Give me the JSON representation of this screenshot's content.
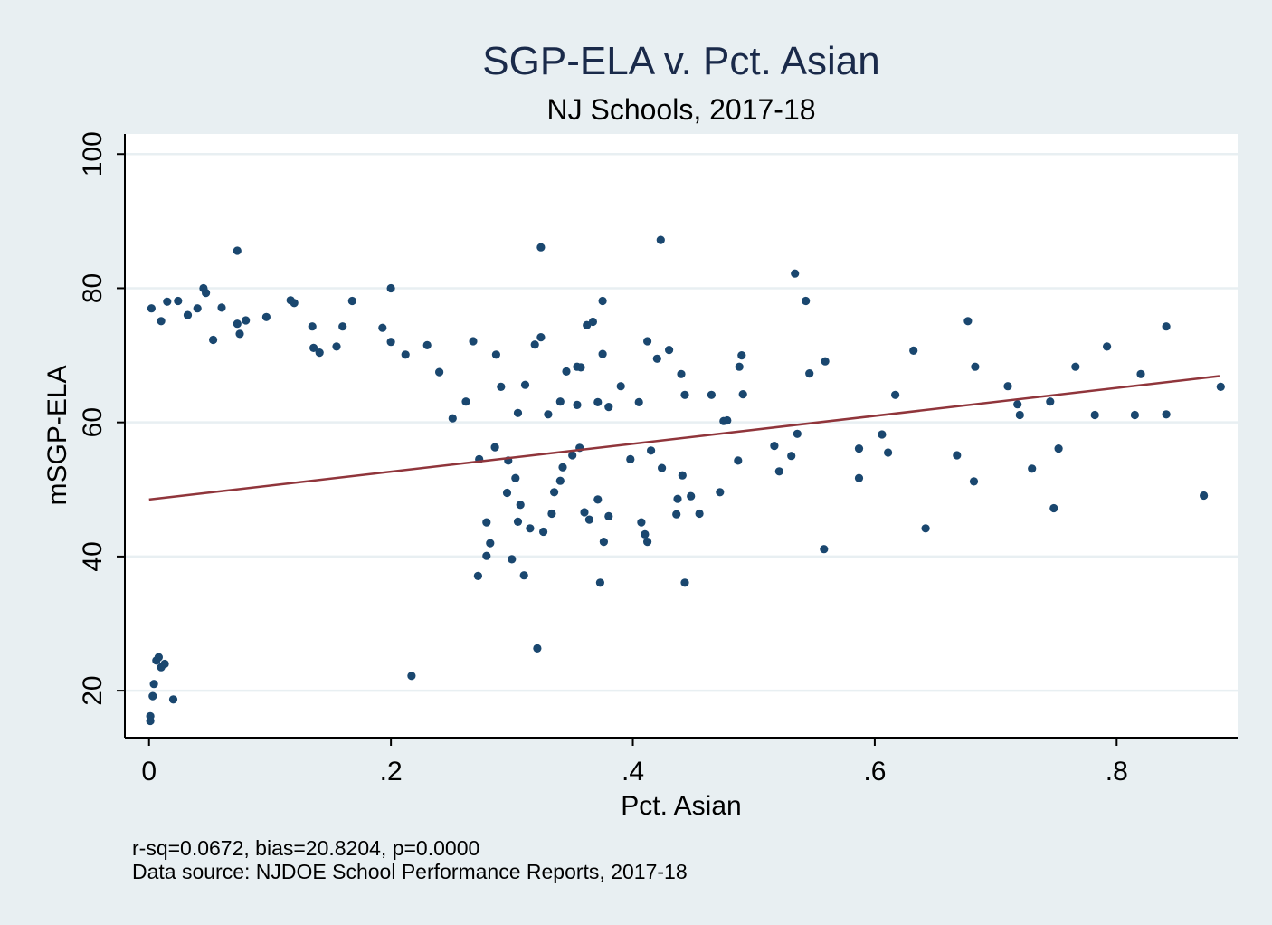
{
  "chart_data": {
    "type": "scatter",
    "title": "SGP-ELA v. Pct. Asian",
    "subtitle": "NJ Schools, 2017-18",
    "xlabel": "Pct. Asian",
    "ylabel": "mSGP-ELA",
    "xlim": [
      -0.02,
      0.9
    ],
    "ylim": [
      13,
      103
    ],
    "x_ticks": [
      {
        "value": 0,
        "label": "0"
      },
      {
        "value": 0.2,
        "label": ".2"
      },
      {
        "value": 0.4,
        "label": ".4"
      },
      {
        "value": 0.6,
        "label": ".6"
      },
      {
        "value": 0.8,
        "label": ".8"
      }
    ],
    "y_ticks": [
      {
        "value": 20,
        "label": "20"
      },
      {
        "value": 40,
        "label": "40"
      },
      {
        "value": 60,
        "label": "60"
      },
      {
        "value": 80,
        "label": "80"
      },
      {
        "value": 100,
        "label": "100"
      }
    ],
    "grid": true,
    "fit_line": {
      "x": [
        0,
        0.885
      ],
      "y": [
        48.5,
        66.9
      ],
      "color": "#90353b"
    },
    "point_color": "#1a476f",
    "plot_background": "#ffffff",
    "page_background": "#e8eff2",
    "note_lines": [
      "r-sq=0.0672, bias=20.8204, p=0.0000",
      "Data source: NJDOE School Performance Reports, 2017-18"
    ],
    "series": [
      {
        "points": [
          [
            0.001,
            15.5
          ],
          [
            0.001,
            16.2
          ],
          [
            0.003,
            19.2
          ],
          [
            0.004,
            21.0
          ],
          [
            0.006,
            24.5
          ],
          [
            0.008,
            25.0
          ],
          [
            0.01,
            23.5
          ],
          [
            0.013,
            24.0
          ],
          [
            0.02,
            18.7
          ],
          [
            0.217,
            22.2
          ],
          [
            0.321,
            26.3
          ],
          [
            0.073,
            85.6
          ],
          [
            0.324,
            86.1
          ],
          [
            0.423,
            87.2
          ],
          [
            0.534,
            82.2
          ],
          [
            0.2,
            80.0
          ],
          [
            0.045,
            80.0
          ],
          [
            0.047,
            79.3
          ],
          [
            0.117,
            78.2
          ],
          [
            0.12,
            77.8
          ],
          [
            0.168,
            78.1
          ],
          [
            0.375,
            78.1
          ],
          [
            0.543,
            78.1
          ],
          [
            0.015,
            78.0
          ],
          [
            0.024,
            78.1
          ],
          [
            0.002,
            77.0
          ],
          [
            0.06,
            77.1
          ],
          [
            0.032,
            76.0
          ],
          [
            0.04,
            77.0
          ],
          [
            0.097,
            75.7
          ],
          [
            0.08,
            75.2
          ],
          [
            0.01,
            75.1
          ],
          [
            0.367,
            75.0
          ],
          [
            0.362,
            74.5
          ],
          [
            0.135,
            74.3
          ],
          [
            0.193,
            74.1
          ],
          [
            0.16,
            74.3
          ],
          [
            0.073,
            74.7
          ],
          [
            0.324,
            72.7
          ],
          [
            0.319,
            71.6
          ],
          [
            0.268,
            72.1
          ],
          [
            0.23,
            71.5
          ],
          [
            0.2,
            72.0
          ],
          [
            0.155,
            71.3
          ],
          [
            0.136,
            71.1
          ],
          [
            0.075,
            73.2
          ],
          [
            0.053,
            72.3
          ],
          [
            0.412,
            72.1
          ],
          [
            0.43,
            70.8
          ],
          [
            0.42,
            69.5
          ],
          [
            0.375,
            70.2
          ],
          [
            0.287,
            70.1
          ],
          [
            0.141,
            70.4
          ],
          [
            0.212,
            70.1
          ],
          [
            0.49,
            70.0
          ],
          [
            0.632,
            70.7
          ],
          [
            0.677,
            75.1
          ],
          [
            0.841,
            74.3
          ],
          [
            0.792,
            71.3
          ],
          [
            0.766,
            68.3
          ],
          [
            0.82,
            67.2
          ],
          [
            0.683,
            68.3
          ],
          [
            0.546,
            67.3
          ],
          [
            0.559,
            69.1
          ],
          [
            0.488,
            68.3
          ],
          [
            0.44,
            67.2
          ],
          [
            0.354,
            68.3
          ],
          [
            0.357,
            68.2
          ],
          [
            0.24,
            67.5
          ],
          [
            0.345,
            67.6
          ],
          [
            0.71,
            65.4
          ],
          [
            0.886,
            65.3
          ],
          [
            0.718,
            62.7
          ],
          [
            0.72,
            61.1
          ],
          [
            0.745,
            63.1
          ],
          [
            0.782,
            61.1
          ],
          [
            0.815,
            61.1
          ],
          [
            0.841,
            61.2
          ],
          [
            0.617,
            64.1
          ],
          [
            0.491,
            64.2
          ],
          [
            0.443,
            64.1
          ],
          [
            0.465,
            64.1
          ],
          [
            0.475,
            60.2
          ],
          [
            0.478,
            60.3
          ],
          [
            0.371,
            63.0
          ],
          [
            0.38,
            62.3
          ],
          [
            0.39,
            65.4
          ],
          [
            0.405,
            63.0
          ],
          [
            0.354,
            62.6
          ],
          [
            0.34,
            63.1
          ],
          [
            0.33,
            61.2
          ],
          [
            0.305,
            61.4
          ],
          [
            0.291,
            65.3
          ],
          [
            0.311,
            65.6
          ],
          [
            0.262,
            63.1
          ],
          [
            0.251,
            60.6
          ],
          [
            0.536,
            58.3
          ],
          [
            0.517,
            56.5
          ],
          [
            0.531,
            55.0
          ],
          [
            0.521,
            52.7
          ],
          [
            0.587,
            56.1
          ],
          [
            0.587,
            51.7
          ],
          [
            0.606,
            58.2
          ],
          [
            0.611,
            55.5
          ],
          [
            0.668,
            55.1
          ],
          [
            0.682,
            51.2
          ],
          [
            0.73,
            53.1
          ],
          [
            0.752,
            56.1
          ],
          [
            0.748,
            47.2
          ],
          [
            0.872,
            49.1
          ],
          [
            0.642,
            44.2
          ],
          [
            0.558,
            41.1
          ],
          [
            0.443,
            36.1
          ],
          [
            0.373,
            36.1
          ],
          [
            0.31,
            37.2
          ],
          [
            0.272,
            37.1
          ],
          [
            0.487,
            54.3
          ],
          [
            0.472,
            49.6
          ],
          [
            0.455,
            46.4
          ],
          [
            0.448,
            49.0
          ],
          [
            0.436,
            46.3
          ],
          [
            0.437,
            48.6
          ],
          [
            0.441,
            52.1
          ],
          [
            0.424,
            53.2
          ],
          [
            0.415,
            55.8
          ],
          [
            0.398,
            54.5
          ],
          [
            0.407,
            45.1
          ],
          [
            0.41,
            43.3
          ],
          [
            0.412,
            42.2
          ],
          [
            0.376,
            42.2
          ],
          [
            0.38,
            46.0
          ],
          [
            0.364,
            45.5
          ],
          [
            0.36,
            46.6
          ],
          [
            0.371,
            48.5
          ],
          [
            0.35,
            55.1
          ],
          [
            0.356,
            56.2
          ],
          [
            0.342,
            53.3
          ],
          [
            0.34,
            51.3
          ],
          [
            0.335,
            49.6
          ],
          [
            0.333,
            46.4
          ],
          [
            0.326,
            43.7
          ],
          [
            0.315,
            44.2
          ],
          [
            0.305,
            45.2
          ],
          [
            0.307,
            47.7
          ],
          [
            0.296,
            49.5
          ],
          [
            0.303,
            51.7
          ],
          [
            0.297,
            54.3
          ],
          [
            0.286,
            56.3
          ],
          [
            0.273,
            54.5
          ],
          [
            0.279,
            45.1
          ],
          [
            0.282,
            42.0
          ],
          [
            0.279,
            40.1
          ],
          [
            0.3,
            39.6
          ]
        ]
      }
    ]
  }
}
